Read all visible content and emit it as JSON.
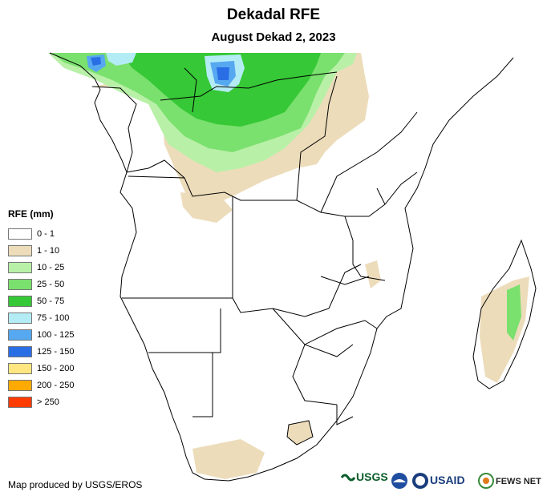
{
  "title": "Dekadal RFE",
  "subtitle": "August Dekad 2, 2023",
  "legend": {
    "title": "RFE (mm)",
    "items": [
      {
        "label": "0 - 1",
        "color": "#ffffff"
      },
      {
        "label": "1 - 10",
        "color": "#ecdcba"
      },
      {
        "label": "10 - 25",
        "color": "#b9f0a8"
      },
      {
        "label": "25 - 50",
        "color": "#7ae06e"
      },
      {
        "label": "50 - 75",
        "color": "#36c836"
      },
      {
        "label": "75 - 100",
        "color": "#b4ecf6"
      },
      {
        "label": "100 - 125",
        "color": "#56a8f0"
      },
      {
        "label": "125 - 150",
        "color": "#2a6ee6"
      },
      {
        "label": "150 - 200",
        "color": "#ffe680"
      },
      {
        "label": "200 - 250",
        "color": "#ffaa00"
      },
      {
        "label": "> 250",
        "color": "#ff3c00"
      }
    ]
  },
  "credit": "Map produced by USGS/EROS",
  "logos": {
    "usgs": "USGS",
    "usaid": "USAID",
    "fewsnet": "FEWS NET"
  },
  "colors": {
    "tan": "#ecdcba",
    "lightgreen": "#b9f0a8",
    "green": "#7ae06e",
    "darkgreen": "#36c836",
    "cyan": "#b4ecf6",
    "blue": "#56a8f0",
    "darkblue": "#2a6ee6"
  }
}
